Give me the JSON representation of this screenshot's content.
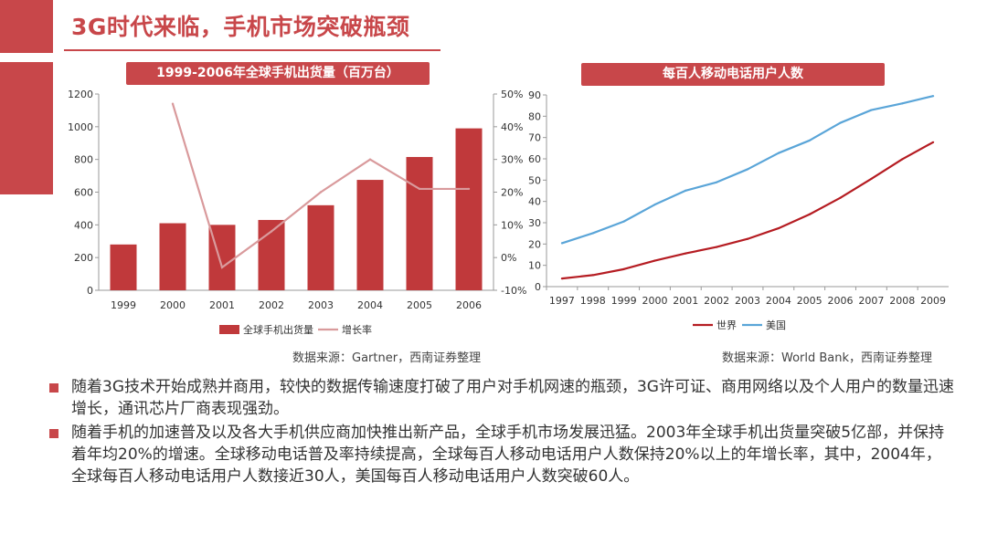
{
  "page": {
    "title": "3G时代来临，手机市场突破瓶颈"
  },
  "colors": {
    "accent": "#c8474a",
    "bar": "#c0393b",
    "growth_line": "#d99a9c",
    "world_line": "#b51c22",
    "us_line": "#5aa5d8"
  },
  "chart_data": [
    {
      "type": "bar",
      "title": "1999-2006年全球手机出货量（百万台）",
      "categories": [
        "1999",
        "2000",
        "2001",
        "2002",
        "2003",
        "2004",
        "2005",
        "2006"
      ],
      "series": [
        {
          "name": "全球手机出货量",
          "type": "bar",
          "axis": "left",
          "values": [
            280,
            410,
            400,
            430,
            520,
            675,
            815,
            990
          ]
        },
        {
          "name": "增长率",
          "type": "line",
          "axis": "right",
          "values": [
            null,
            47,
            -3,
            8,
            20,
            30,
            21,
            21
          ]
        }
      ],
      "ylim": [
        0,
        1200
      ],
      "yticks": [
        0,
        200,
        400,
        600,
        800,
        1000,
        1200
      ],
      "y2lim": [
        -10,
        50
      ],
      "y2ticks": [
        "-10%",
        "0%",
        "10%",
        "20%",
        "30%",
        "40%",
        "50%"
      ],
      "legend": "bottom",
      "grid": false,
      "source": "数据来源：Gartner，西南证券整理"
    },
    {
      "type": "line",
      "title": "每百人移动电话用户人数",
      "x": [
        "1997",
        "1998",
        "1999",
        "2000",
        "2001",
        "2002",
        "2003",
        "2004",
        "2005",
        "2006",
        "2007",
        "2008",
        "2009"
      ],
      "series": [
        {
          "name": "世界",
          "values": [
            3.8,
            5.4,
            8.2,
            12.2,
            15.6,
            18.6,
            22.4,
            27.4,
            33.9,
            41.7,
            50.6,
            59.8,
            67.8
          ]
        },
        {
          "name": "美国",
          "values": [
            20.4,
            25.1,
            30.6,
            38.5,
            45.1,
            49.0,
            55.1,
            62.7,
            68.6,
            76.9,
            82.9,
            86.0,
            89.5
          ]
        }
      ],
      "ylim": [
        0,
        90
      ],
      "yticks": [
        0,
        10,
        20,
        30,
        40,
        50,
        60,
        70,
        80,
        90
      ],
      "legend": "bottom",
      "grid": false,
      "source": "数据来源：World Bank，西南证券整理"
    }
  ],
  "bullets": [
    "随着3G技术开始成熟并商用，较快的数据传输速度打破了用户对手机网速的瓶颈，3G许可证、商用网络以及个人用户的数量迅速增长，通讯芯片厂商表现强劲。",
    "随着手机的加速普及以及各大手机供应商加快推出新产品，全球手机市场发展迅猛。2003年全球手机出货量突破5亿部，并保持着年均20%的增速。全球移动电话普及率持续提高，全球每百人移动电话用户人数保持20%以上的年增长率，其中，2004年，全球每百人移动电话用户人数接近30人，美国每百人移动电话用户人数突破60人。"
  ]
}
